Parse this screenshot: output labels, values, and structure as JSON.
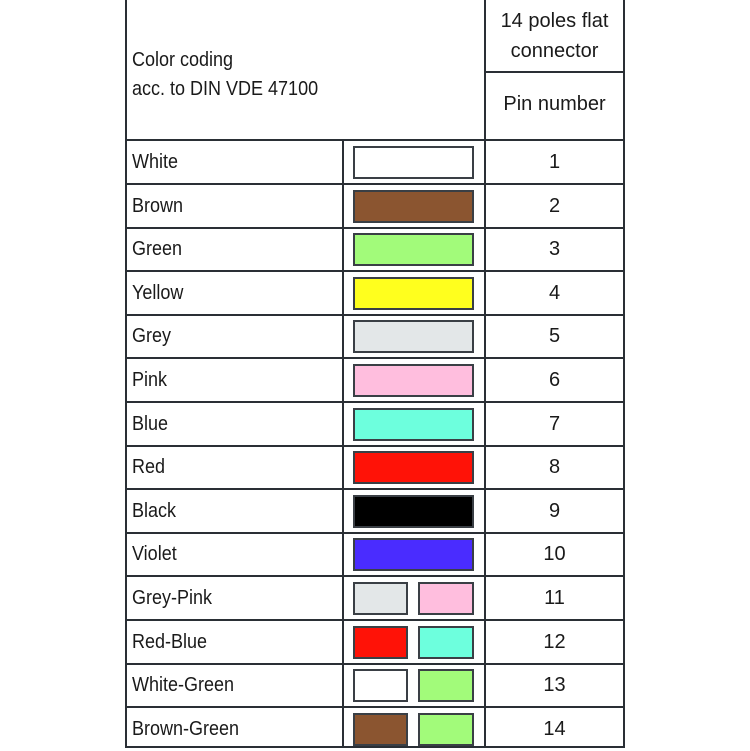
{
  "header": {
    "title_line1": "Color coding",
    "title_line2": "acc. to DIN VDE 47100",
    "connector_line1": "14 poles flat",
    "connector_line2": "connector",
    "pin_header": "Pin number"
  },
  "rows": [
    {
      "name": "White",
      "colors": [
        "#ffffff"
      ],
      "pin": "1"
    },
    {
      "name": "Brown",
      "colors": [
        "#8b5530"
      ],
      "pin": "2"
    },
    {
      "name": "Green",
      "colors": [
        "#a2fb7a"
      ],
      "pin": "3"
    },
    {
      "name": "Yellow",
      "colors": [
        "#ffff1e"
      ],
      "pin": "4"
    },
    {
      "name": "Grey",
      "colors": [
        "#e3e7e8"
      ],
      "pin": "5"
    },
    {
      "name": "Pink",
      "colors": [
        "#ffbede"
      ],
      "pin": "6"
    },
    {
      "name": "Blue",
      "colors": [
        "#6dffdd"
      ],
      "pin": "7"
    },
    {
      "name": "Red",
      "colors": [
        "#ff1207"
      ],
      "pin": "8"
    },
    {
      "name": "Black",
      "colors": [
        "#000000"
      ],
      "pin": "9"
    },
    {
      "name": "Violet",
      "colors": [
        "#4a2cff"
      ],
      "pin": "10"
    },
    {
      "name": "Grey-Pink",
      "colors": [
        "#e3e7e8",
        "#ffbede"
      ],
      "pin": "11"
    },
    {
      "name": "Red-Blue",
      "colors": [
        "#ff1207",
        "#6dffdd"
      ],
      "pin": "12"
    },
    {
      "name": "White-Green",
      "colors": [
        "#ffffff",
        "#a2fb7a"
      ],
      "pin": "13"
    },
    {
      "name": "Brown-Green",
      "colors": [
        "#8b5530",
        "#a2fb7a"
      ],
      "pin": "14"
    }
  ]
}
